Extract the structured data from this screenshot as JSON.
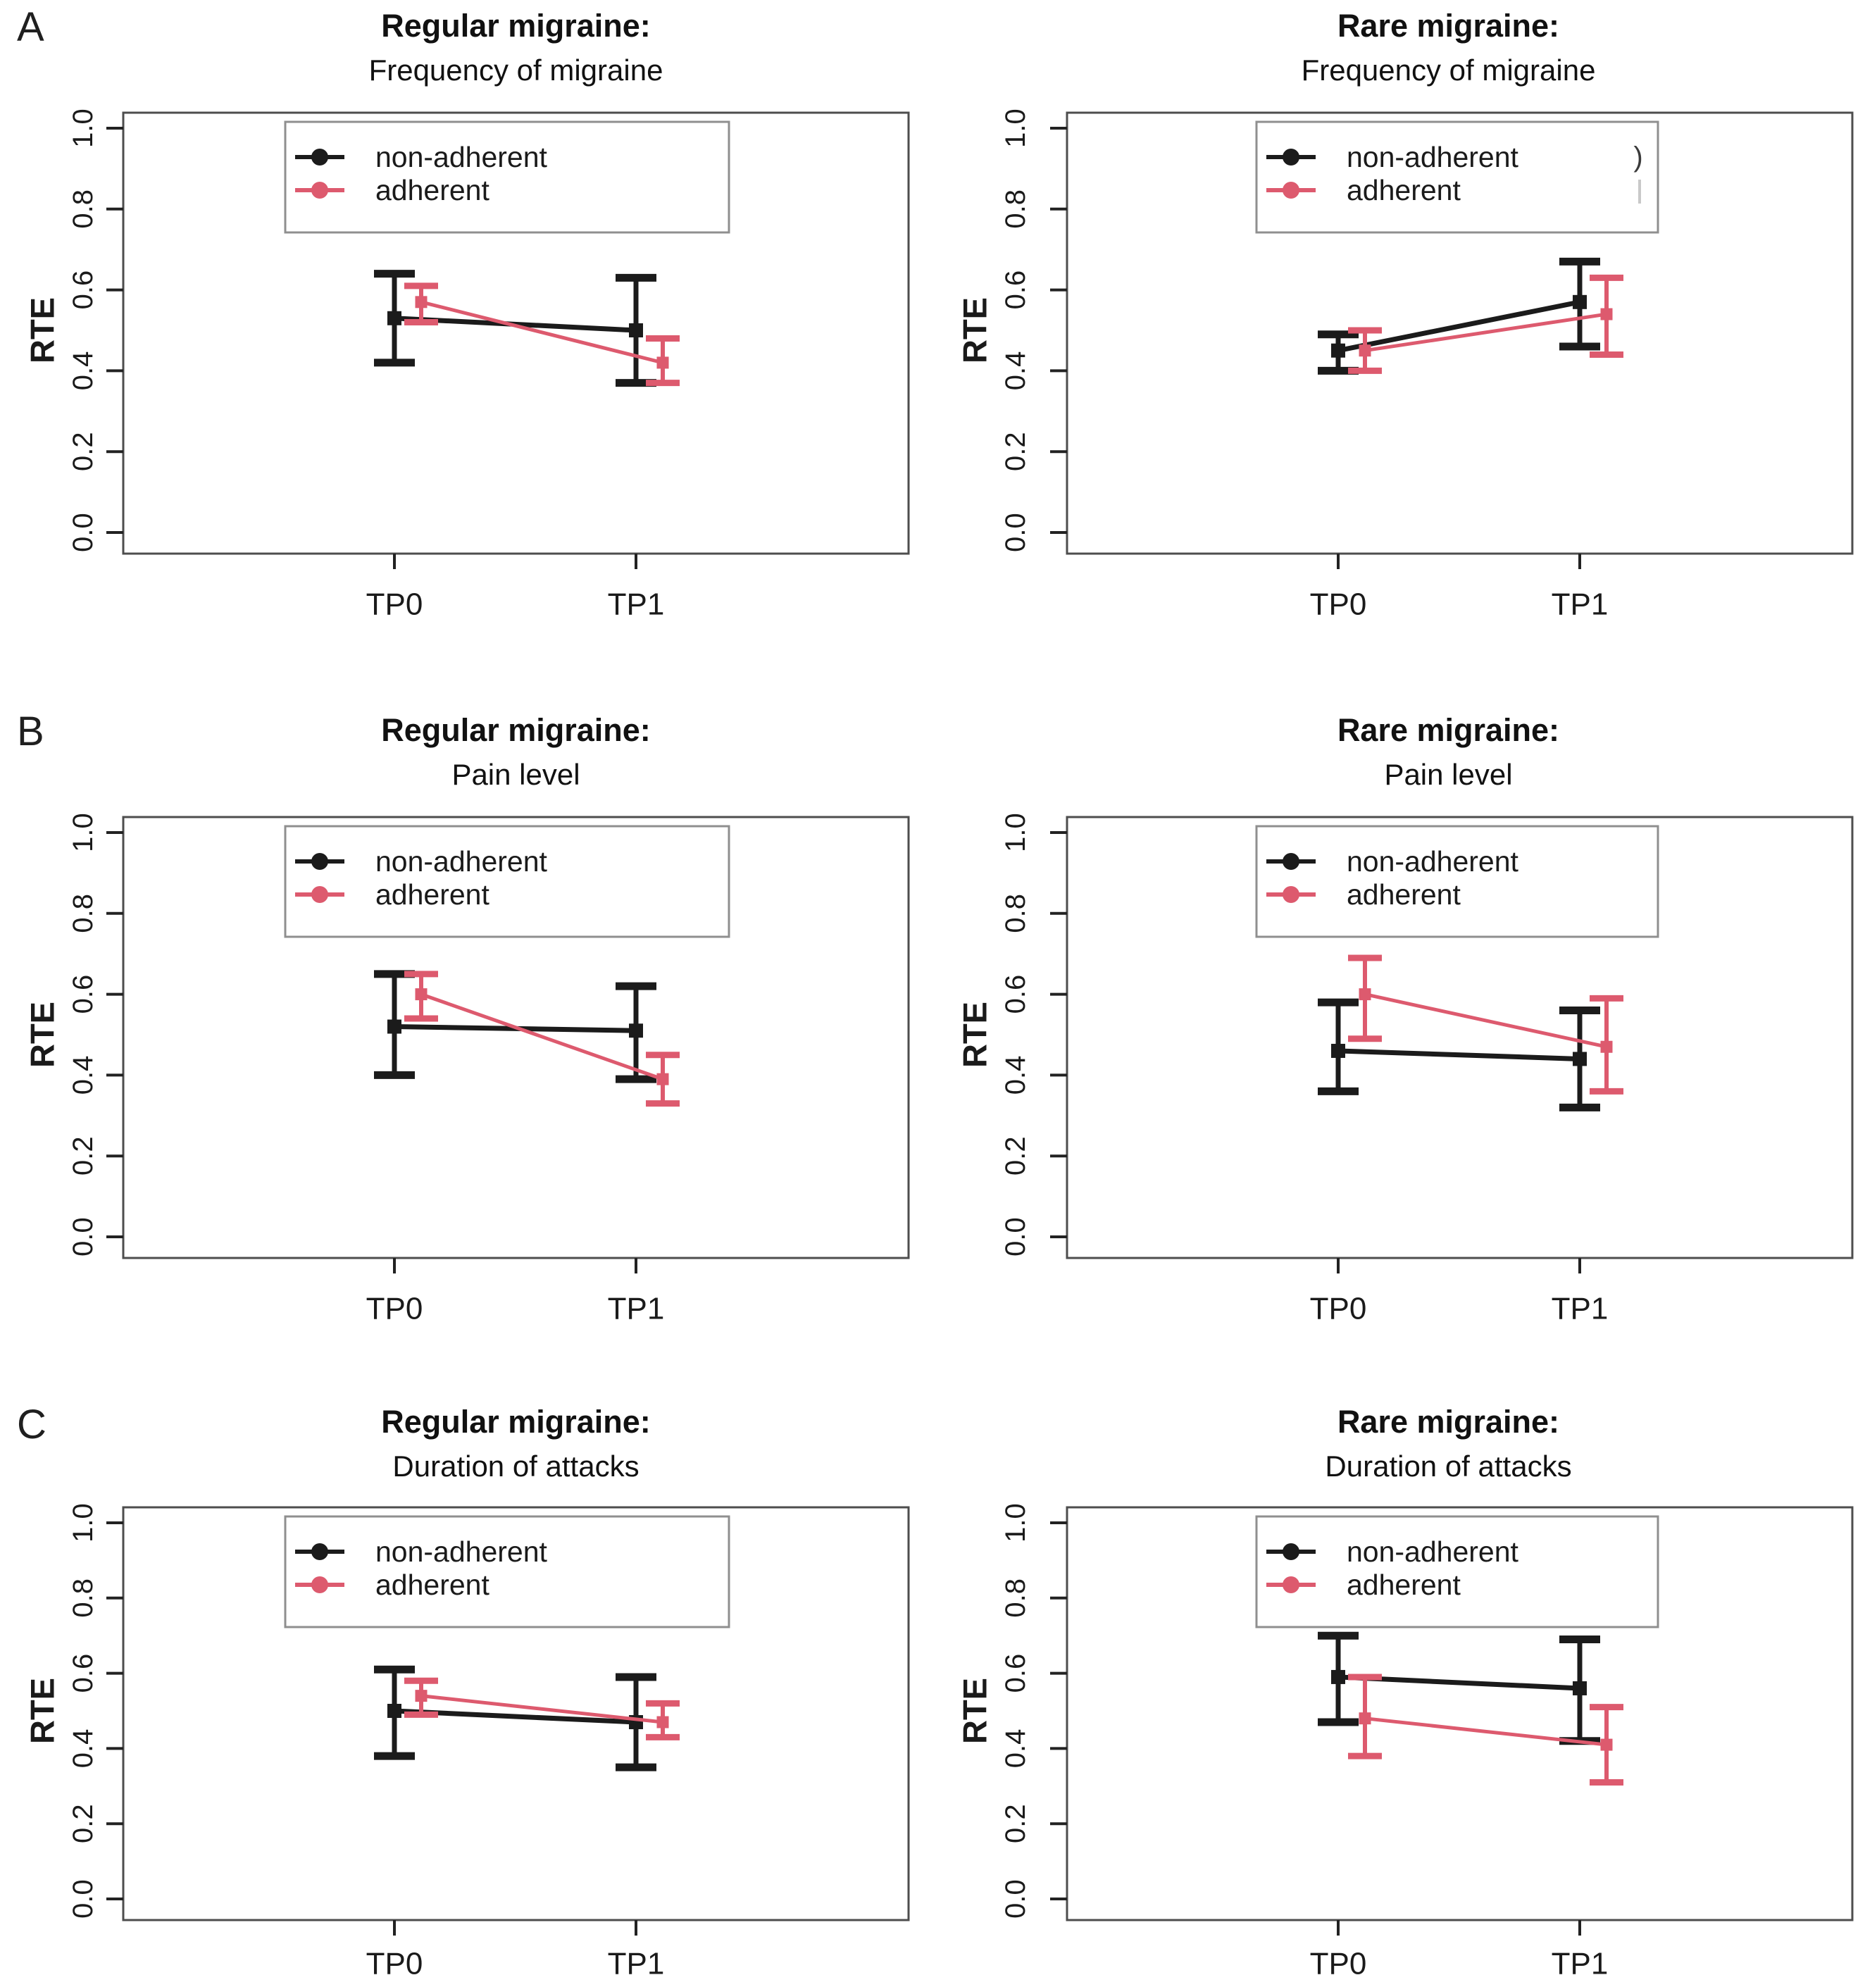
{
  "figure": {
    "panel_letters": [
      "A",
      "B",
      "C"
    ],
    "axis": {
      "ylabel": "RTE",
      "yticks": [
        "0.0",
        "0.2",
        "0.4",
        "0.6",
        "0.8",
        "1.0"
      ],
      "ylim": [
        0.0,
        1.0
      ],
      "categories": [
        "TP0",
        "TP1"
      ]
    },
    "legend": {
      "items": [
        {
          "label": "non-adherent",
          "color": "#1b1b1b"
        },
        {
          "label": "adherent",
          "color": "#dd5a6e"
        }
      ],
      "position": "top-center-inside"
    },
    "colors": {
      "non_adherent": "#1b1b1b",
      "adherent": "#dd5a6e",
      "box_border": "#4d4d4d",
      "legend_border": "#8f8f8f",
      "text": "#1a1a1a"
    }
  },
  "chart_data": [
    {
      "type": "line",
      "panel": "A",
      "position": "left",
      "title_line1": "Regular migraine:",
      "title_line2": "Frequency of migraine",
      "categories": [
        "TP0",
        "TP1"
      ],
      "ylabel": "RTE",
      "ylim": [
        0.0,
        1.0
      ],
      "yticks": [
        0.0,
        0.2,
        0.4,
        0.6,
        0.8,
        1.0
      ],
      "series": [
        {
          "name": "non-adherent",
          "values": [
            0.53,
            0.5
          ],
          "ci_low": [
            0.42,
            0.37
          ],
          "ci_high": [
            0.64,
            0.63
          ]
        },
        {
          "name": "adherent",
          "values": [
            0.57,
            0.42
          ],
          "ci_low": [
            0.52,
            0.37
          ],
          "ci_high": [
            0.61,
            0.48
          ]
        }
      ]
    },
    {
      "type": "line",
      "panel": "A",
      "position": "right",
      "title_line1": "Rare migraine:",
      "title_line2": "Frequency of migraine",
      "categories": [
        "TP0",
        "TP1"
      ],
      "ylabel": "RTE",
      "ylim": [
        0.0,
        1.0
      ],
      "yticks": [
        0.0,
        0.2,
        0.4,
        0.6,
        0.8,
        1.0
      ],
      "legend_artifact": ")",
      "series": [
        {
          "name": "non-adherent",
          "values": [
            0.45,
            0.57
          ],
          "ci_low": [
            0.4,
            0.46
          ],
          "ci_high": [
            0.49,
            0.67
          ]
        },
        {
          "name": "adherent",
          "values": [
            0.45,
            0.54
          ],
          "ci_low": [
            0.4,
            0.44
          ],
          "ci_high": [
            0.5,
            0.63
          ]
        }
      ]
    },
    {
      "type": "line",
      "panel": "B",
      "position": "left",
      "title_line1": "Regular migraine:",
      "title_line2": "Pain level",
      "categories": [
        "TP0",
        "TP1"
      ],
      "ylabel": "RTE",
      "ylim": [
        0.0,
        1.0
      ],
      "yticks": [
        0.0,
        0.2,
        0.4,
        0.6,
        0.8,
        1.0
      ],
      "series": [
        {
          "name": "non-adherent",
          "values": [
            0.52,
            0.51
          ],
          "ci_low": [
            0.4,
            0.39
          ],
          "ci_high": [
            0.65,
            0.62
          ]
        },
        {
          "name": "adherent",
          "values": [
            0.6,
            0.39
          ],
          "ci_low": [
            0.54,
            0.33
          ],
          "ci_high": [
            0.65,
            0.45
          ]
        }
      ]
    },
    {
      "type": "line",
      "panel": "B",
      "position": "right",
      "title_line1": "Rare migraine:",
      "title_line2": "Pain level",
      "categories": [
        "TP0",
        "TP1"
      ],
      "ylabel": "RTE",
      "ylim": [
        0.0,
        1.0
      ],
      "yticks": [
        0.0,
        0.2,
        0.4,
        0.6,
        0.8,
        1.0
      ],
      "series": [
        {
          "name": "non-adherent",
          "values": [
            0.46,
            0.44
          ],
          "ci_low": [
            0.36,
            0.32
          ],
          "ci_high": [
            0.58,
            0.56
          ]
        },
        {
          "name": "adherent",
          "values": [
            0.6,
            0.47
          ],
          "ci_low": [
            0.49,
            0.36
          ],
          "ci_high": [
            0.69,
            0.59
          ]
        }
      ]
    },
    {
      "type": "line",
      "panel": "C",
      "position": "left",
      "title_line1": "Regular migraine:",
      "title_line2": "Duration of attacks",
      "categories": [
        "TP0",
        "TP1"
      ],
      "ylabel": "RTE",
      "ylim": [
        0.0,
        1.0
      ],
      "yticks": [
        0.0,
        0.2,
        0.4,
        0.6,
        0.8,
        1.0
      ],
      "series": [
        {
          "name": "non-adherent",
          "values": [
            0.5,
            0.47
          ],
          "ci_low": [
            0.38,
            0.35
          ],
          "ci_high": [
            0.61,
            0.59
          ]
        },
        {
          "name": "adherent",
          "values": [
            0.54,
            0.47
          ],
          "ci_low": [
            0.49,
            0.43
          ],
          "ci_high": [
            0.58,
            0.52
          ]
        }
      ]
    },
    {
      "type": "line",
      "panel": "C",
      "position": "right",
      "title_line1": "Rare migraine:",
      "title_line2": "Duration of attacks",
      "categories": [
        "TP0",
        "TP1"
      ],
      "ylabel": "RTE",
      "ylim": [
        0.0,
        1.0
      ],
      "yticks": [
        0.0,
        0.2,
        0.4,
        0.6,
        0.8,
        1.0
      ],
      "series": [
        {
          "name": "non-adherent",
          "values": [
            0.59,
            0.56
          ],
          "ci_low": [
            0.47,
            0.42
          ],
          "ci_high": [
            0.7,
            0.69
          ]
        },
        {
          "name": "adherent",
          "values": [
            0.48,
            0.41
          ],
          "ci_low": [
            0.38,
            0.31
          ],
          "ci_high": [
            0.59,
            0.51
          ]
        }
      ]
    }
  ]
}
